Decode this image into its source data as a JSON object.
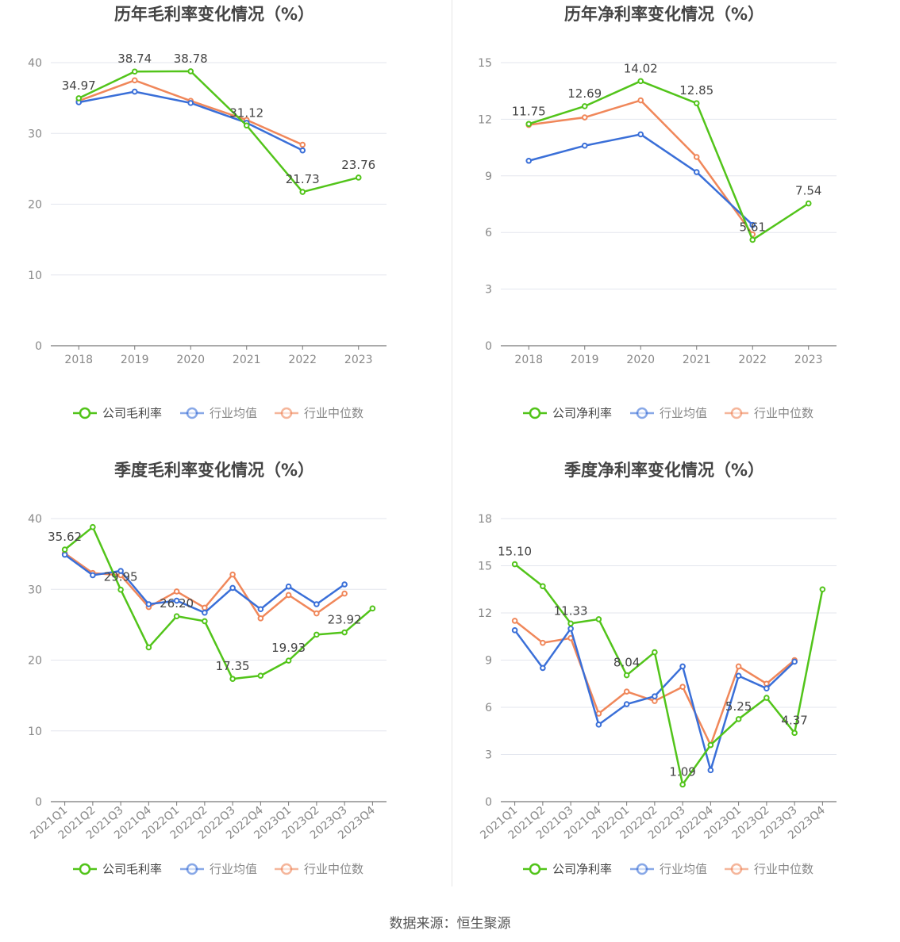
{
  "source_label": "数据来源：恒生聚源",
  "colors": {
    "company": "#52c41a",
    "avg": "#3a6fd8",
    "median": "#f0875a"
  },
  "chart_data": [
    {
      "type": "line",
      "title": "历年毛利率变化情况（%）",
      "x": [
        "2018",
        "2019",
        "2020",
        "2021",
        "2022",
        "2023"
      ],
      "ylim": [
        0,
        40
      ],
      "yticks": [
        0,
        10,
        20,
        30,
        40
      ],
      "grid": true,
      "legend_position": "bottom",
      "rotate_x": false,
      "series": [
        {
          "name": "公司毛利率",
          "key": "company",
          "values": [
            34.97,
            38.74,
            38.78,
            31.12,
            21.73,
            23.76
          ],
          "show_labels": true
        },
        {
          "name": "行业均值",
          "key": "avg",
          "values": [
            34.4,
            35.9,
            34.3,
            31.5,
            27.6,
            null
          ],
          "show_labels": false
        },
        {
          "name": "行业中位数",
          "key": "median",
          "values": [
            34.6,
            37.5,
            34.6,
            31.9,
            28.4,
            null
          ],
          "show_labels": false
        }
      ]
    },
    {
      "type": "line",
      "title": "历年净利率变化情况（%）",
      "x": [
        "2018",
        "2019",
        "2020",
        "2021",
        "2022",
        "2023"
      ],
      "ylim": [
        0,
        15
      ],
      "yticks": [
        0,
        3,
        6,
        9,
        12,
        15
      ],
      "grid": true,
      "legend_position": "bottom",
      "rotate_x": false,
      "series": [
        {
          "name": "公司净利率",
          "key": "company",
          "values": [
            11.75,
            12.69,
            14.02,
            12.85,
            5.61,
            7.54
          ],
          "show_labels": true
        },
        {
          "name": "行业均值",
          "key": "avg",
          "values": [
            9.8,
            10.6,
            11.2,
            9.2,
            6.4,
            null
          ],
          "show_labels": false
        },
        {
          "name": "行业中位数",
          "key": "median",
          "values": [
            11.7,
            12.1,
            13.0,
            10.0,
            5.9,
            null
          ],
          "show_labels": false
        }
      ]
    },
    {
      "type": "line",
      "title": "季度毛利率变化情况（%）",
      "x": [
        "2021Q1",
        "2021Q2",
        "2021Q3",
        "2021Q4",
        "2022Q1",
        "2022Q2",
        "2022Q3",
        "2022Q4",
        "2023Q1",
        "2023Q2",
        "2023Q3",
        "2023Q4"
      ],
      "ylim": [
        0,
        40
      ],
      "yticks": [
        0,
        10,
        20,
        30,
        40
      ],
      "grid": true,
      "legend_position": "bottom",
      "rotate_x": true,
      "series": [
        {
          "name": "公司毛利率",
          "key": "company",
          "values": [
            35.62,
            38.8,
            29.95,
            21.8,
            26.2,
            25.5,
            17.35,
            17.8,
            19.93,
            23.6,
            23.92,
            27.3
          ],
          "label_indices": [
            0,
            2,
            4,
            6,
            8,
            10
          ]
        },
        {
          "name": "行业均值",
          "key": "avg",
          "values": [
            34.9,
            32.0,
            32.6,
            27.9,
            28.4,
            26.7,
            30.2,
            27.2,
            30.4,
            27.9,
            30.7,
            null
          ],
          "show_labels": false
        },
        {
          "name": "行业中位数",
          "key": "median",
          "values": [
            35.1,
            32.3,
            32.0,
            27.5,
            29.7,
            27.4,
            32.1,
            25.9,
            29.2,
            26.6,
            29.4,
            null
          ],
          "show_labels": false
        }
      ]
    },
    {
      "type": "line",
      "title": "季度净利率变化情况（%）",
      "x": [
        "2021Q1",
        "2021Q2",
        "2021Q3",
        "2021Q4",
        "2022Q1",
        "2022Q2",
        "2022Q3",
        "2022Q4",
        "2023Q1",
        "2023Q2",
        "2023Q3",
        "2023Q4"
      ],
      "ylim": [
        0,
        18
      ],
      "yticks": [
        0,
        3,
        6,
        9,
        12,
        15,
        18
      ],
      "grid": true,
      "legend_position": "bottom",
      "rotate_x": true,
      "series": [
        {
          "name": "公司净利率",
          "key": "company",
          "values": [
            15.1,
            13.7,
            11.33,
            11.6,
            8.04,
            9.5,
            1.09,
            3.6,
            5.25,
            6.6,
            4.37,
            13.5
          ],
          "label_indices": [
            0,
            2,
            4,
            6,
            8,
            10
          ]
        },
        {
          "name": "行业均值",
          "key": "avg",
          "values": [
            10.9,
            8.5,
            11.0,
            4.9,
            6.2,
            6.7,
            8.6,
            2.0,
            8.0,
            7.2,
            8.9,
            null
          ],
          "show_labels": false
        },
        {
          "name": "行业中位数",
          "key": "median",
          "values": [
            11.5,
            10.1,
            10.4,
            5.6,
            7.0,
            6.4,
            7.3,
            3.6,
            8.6,
            7.5,
            9.0,
            null
          ],
          "show_labels": false
        }
      ]
    }
  ]
}
